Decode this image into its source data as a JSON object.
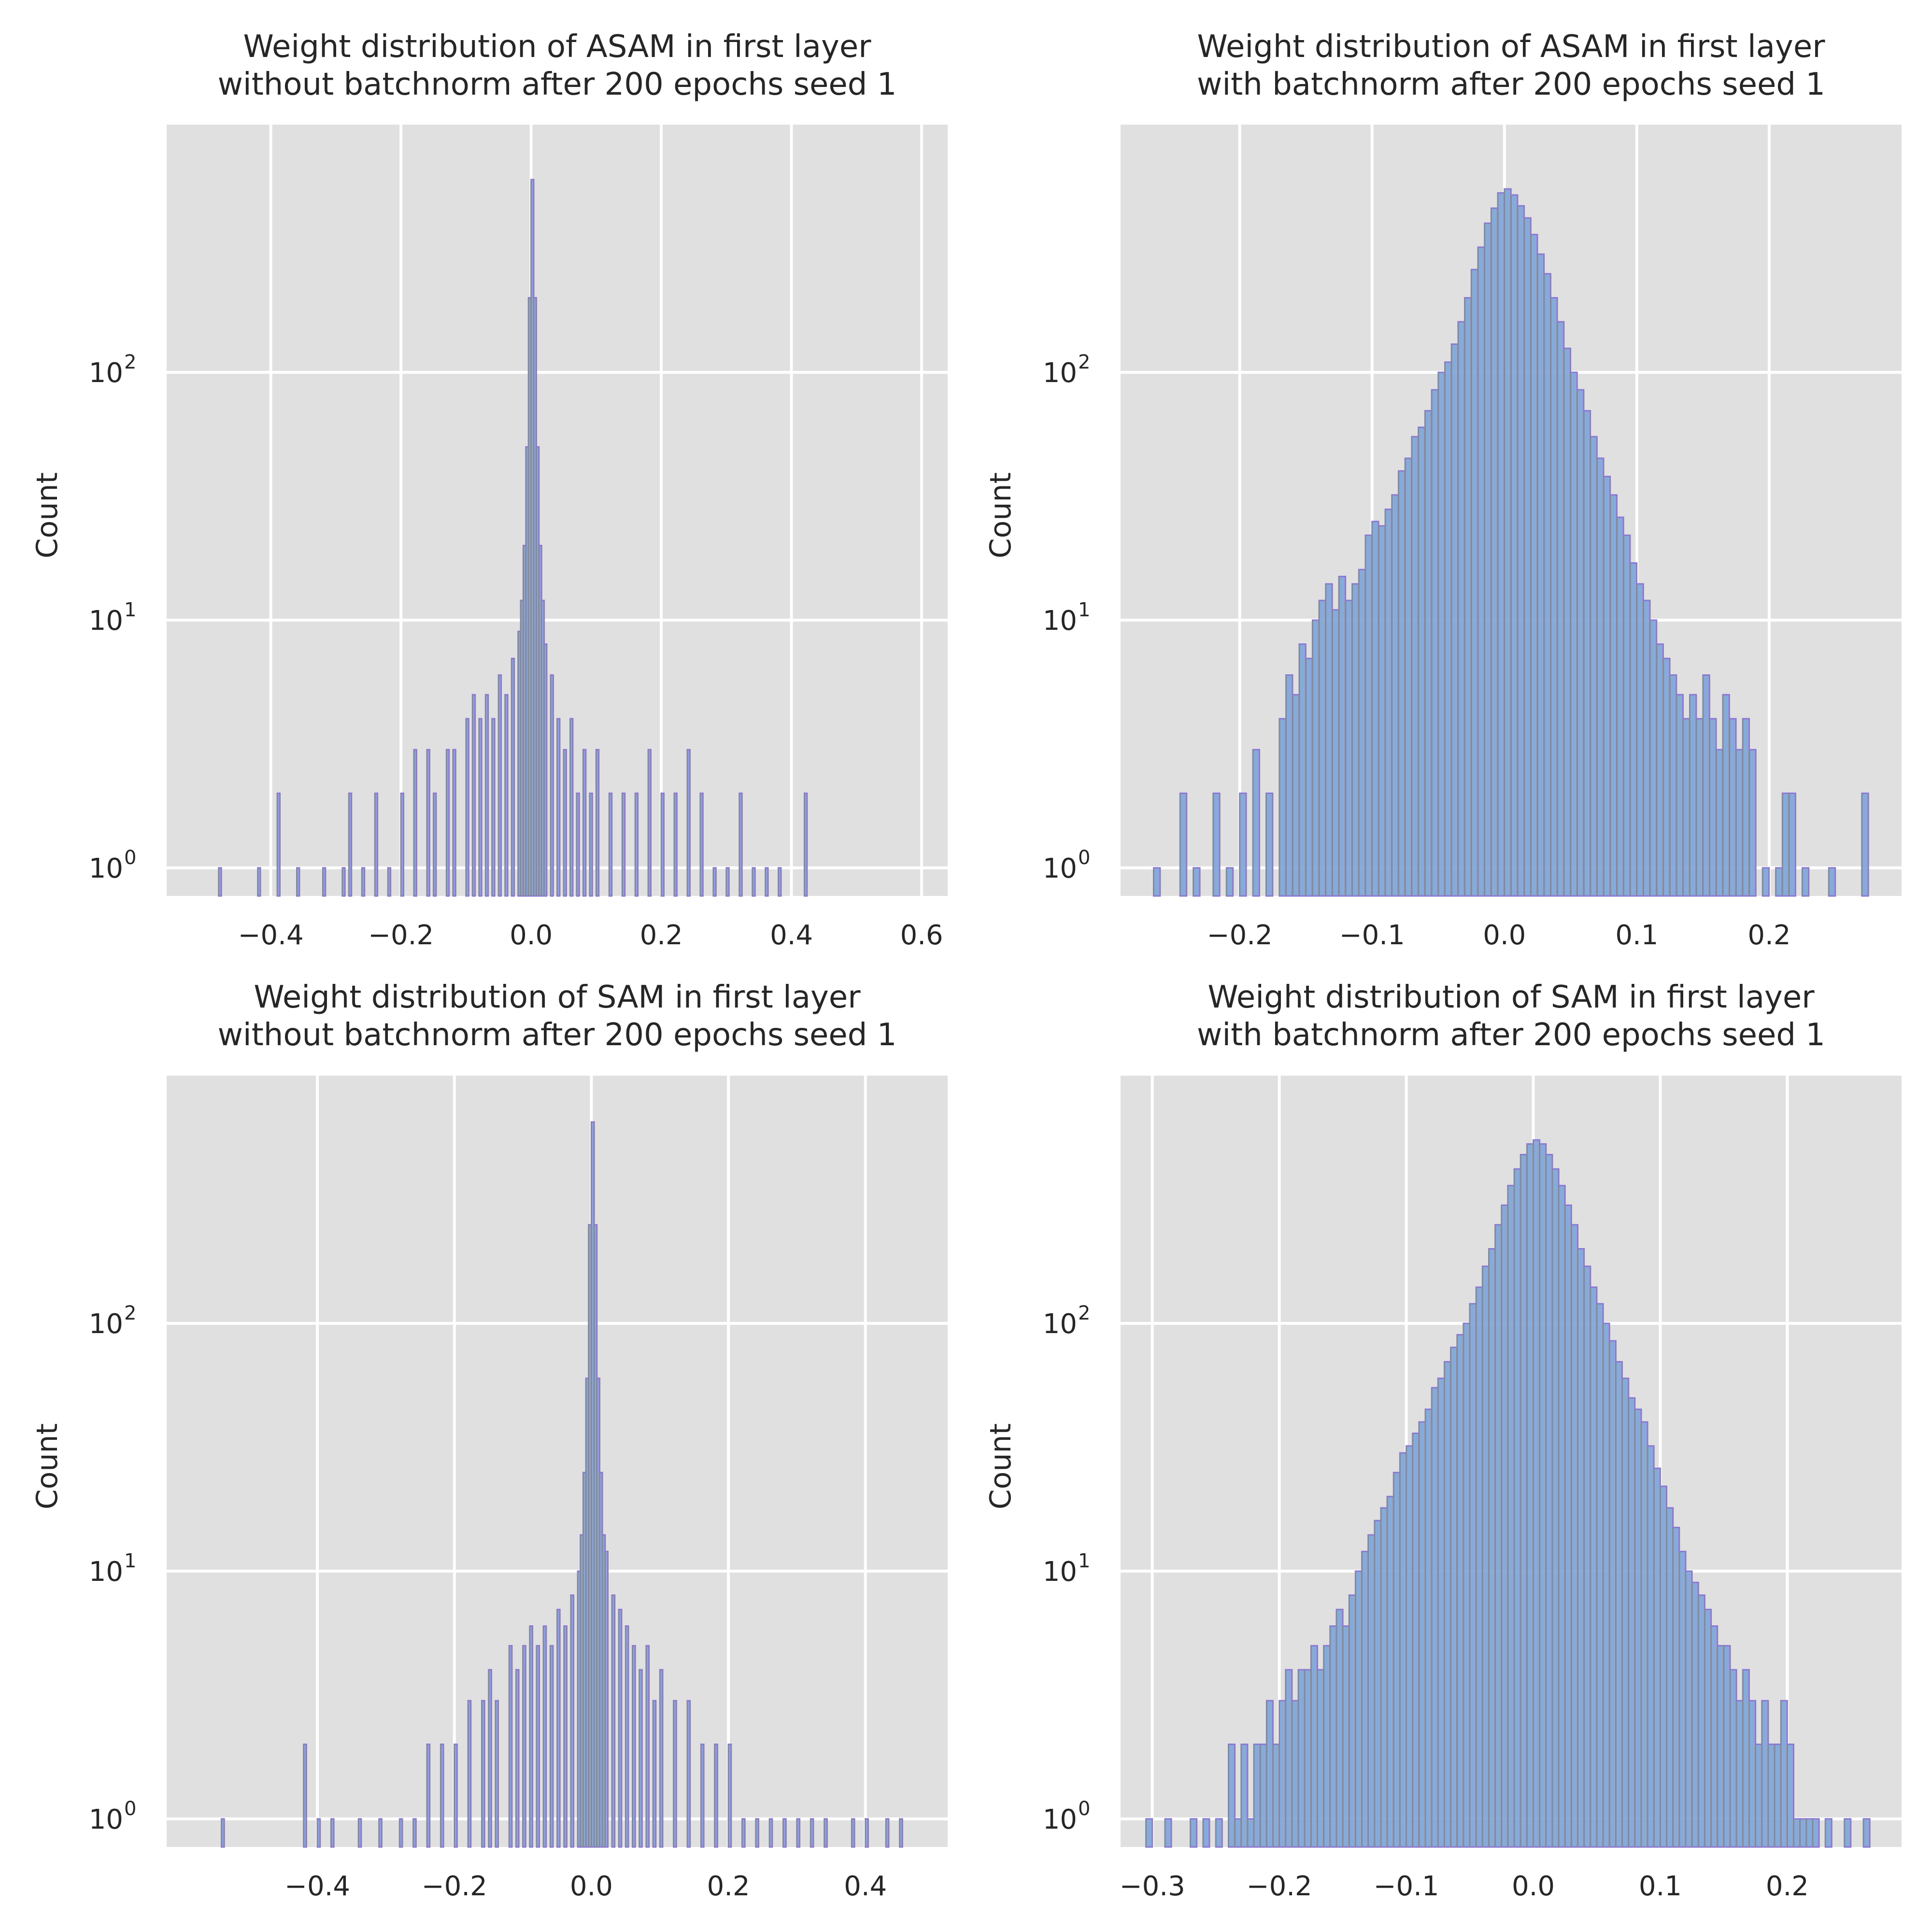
{
  "chart_data": [
    {
      "type": "bar",
      "title_line1": "Weight distribution of ASAM in first layer",
      "title_line2": "without batchnorm after 200 epochs seed 1",
      "ylabel": "Count",
      "xlabel": "",
      "yscale": "log",
      "xlim": [
        -0.56,
        0.64
      ],
      "ylim": [
        0.77,
        1000
      ],
      "xticks": [
        -0.4,
        -0.2,
        0.0,
        0.2,
        0.4,
        0.6
      ],
      "xtick_labels": [
        "−0.4",
        "−0.2",
        "0.0",
        "0.2",
        "0.4",
        "0.6"
      ],
      "yticks": [
        1,
        10,
        100
      ],
      "ytick_labels": [
        {
          "base": "10",
          "exp": "0"
        },
        {
          "base": "10",
          "exp": "1"
        },
        {
          "base": "10",
          "exp": "2"
        }
      ],
      "grid": true,
      "bin_width": 0.004,
      "bins": [
        [
          -0.48,
          1
        ],
        [
          -0.42,
          1
        ],
        [
          -0.39,
          2
        ],
        [
          -0.36,
          1
        ],
        [
          -0.32,
          1
        ],
        [
          -0.29,
          1
        ],
        [
          -0.28,
          2
        ],
        [
          -0.26,
          1
        ],
        [
          -0.24,
          2
        ],
        [
          -0.22,
          1
        ],
        [
          -0.2,
          2
        ],
        [
          -0.18,
          3
        ],
        [
          -0.16,
          3
        ],
        [
          -0.15,
          2
        ],
        [
          -0.13,
          3
        ],
        [
          -0.12,
          3
        ],
        [
          -0.1,
          4
        ],
        [
          -0.09,
          5
        ],
        [
          -0.08,
          4
        ],
        [
          -0.07,
          5
        ],
        [
          -0.06,
          4
        ],
        [
          -0.05,
          6
        ],
        [
          -0.04,
          5
        ],
        [
          -0.03,
          7
        ],
        [
          -0.02,
          9
        ],
        [
          -0.016,
          12
        ],
        [
          -0.012,
          20
        ],
        [
          -0.008,
          50
        ],
        [
          -0.004,
          200
        ],
        [
          0.0,
          600
        ],
        [
          0.004,
          200
        ],
        [
          0.008,
          50
        ],
        [
          0.012,
          20
        ],
        [
          0.016,
          12
        ],
        [
          0.02,
          8
        ],
        [
          0.03,
          6
        ],
        [
          0.04,
          4
        ],
        [
          0.05,
          3
        ],
        [
          0.06,
          4
        ],
        [
          0.07,
          2
        ],
        [
          0.08,
          3
        ],
        [
          0.09,
          2
        ],
        [
          0.1,
          3
        ],
        [
          0.12,
          2
        ],
        [
          0.14,
          2
        ],
        [
          0.16,
          2
        ],
        [
          0.18,
          3
        ],
        [
          0.2,
          2
        ],
        [
          0.22,
          2
        ],
        [
          0.24,
          3
        ],
        [
          0.26,
          2
        ],
        [
          0.28,
          1
        ],
        [
          0.3,
          1
        ],
        [
          0.32,
          2
        ],
        [
          0.34,
          1
        ],
        [
          0.36,
          1
        ],
        [
          0.38,
          1
        ],
        [
          0.42,
          2
        ]
      ]
    },
    {
      "type": "bar",
      "title_line1": "Weight distribution of ASAM in first layer",
      "title_line2": "with batchnorm after 200 epochs seed 1",
      "ylabel": "Count",
      "xlabel": "",
      "yscale": "log",
      "xlim": [
        -0.29,
        0.3
      ],
      "ylim": [
        0.77,
        1000
      ],
      "xticks": [
        -0.2,
        -0.1,
        0.0,
        0.1,
        0.2
      ],
      "xtick_labels": [
        "−0.2",
        "−0.1",
        "0.0",
        "0.1",
        "0.2"
      ],
      "yticks": [
        1,
        10,
        100
      ],
      "ytick_labels": [
        {
          "base": "10",
          "exp": "0"
        },
        {
          "base": "10",
          "exp": "1"
        },
        {
          "base": "10",
          "exp": "2"
        }
      ],
      "grid": true,
      "bin_width": 0.0049,
      "bins": [
        [
          -0.265,
          1
        ],
        [
          -0.245,
          2
        ],
        [
          -0.235,
          1
        ],
        [
          -0.22,
          2
        ],
        [
          -0.21,
          1
        ],
        [
          -0.2,
          2
        ],
        [
          -0.19,
          3
        ],
        [
          -0.18,
          2
        ],
        [
          -0.17,
          4
        ],
        [
          -0.165,
          6
        ],
        [
          -0.16,
          5
        ],
        [
          -0.155,
          8
        ],
        [
          -0.15,
          7
        ],
        [
          -0.145,
          10
        ],
        [
          -0.14,
          12
        ],
        [
          -0.135,
          14
        ],
        [
          -0.13,
          11
        ],
        [
          -0.125,
          15
        ],
        [
          -0.12,
          12
        ],
        [
          -0.115,
          14
        ],
        [
          -0.11,
          16
        ],
        [
          -0.105,
          22
        ],
        [
          -0.1,
          25
        ],
        [
          -0.095,
          24
        ],
        [
          -0.09,
          28
        ],
        [
          -0.085,
          32
        ],
        [
          -0.08,
          40
        ],
        [
          -0.075,
          45
        ],
        [
          -0.07,
          55
        ],
        [
          -0.065,
          60
        ],
        [
          -0.06,
          70
        ],
        [
          -0.055,
          85
        ],
        [
          -0.05,
          100
        ],
        [
          -0.045,
          110
        ],
        [
          -0.04,
          130
        ],
        [
          -0.035,
          160
        ],
        [
          -0.03,
          200
        ],
        [
          -0.025,
          260
        ],
        [
          -0.02,
          320
        ],
        [
          -0.015,
          400
        ],
        [
          -0.01,
          460
        ],
        [
          -0.005,
          530
        ],
        [
          0.0,
          550
        ],
        [
          0.005,
          520
        ],
        [
          0.01,
          470
        ],
        [
          0.015,
          420
        ],
        [
          0.02,
          360
        ],
        [
          0.025,
          300
        ],
        [
          0.03,
          250
        ],
        [
          0.035,
          200
        ],
        [
          0.04,
          160
        ],
        [
          0.045,
          125
        ],
        [
          0.05,
          100
        ],
        [
          0.055,
          85
        ],
        [
          0.06,
          70
        ],
        [
          0.065,
          55
        ],
        [
          0.07,
          45
        ],
        [
          0.075,
          38
        ],
        [
          0.08,
          32
        ],
        [
          0.085,
          26
        ],
        [
          0.09,
          22
        ],
        [
          0.095,
          17
        ],
        [
          0.1,
          14
        ],
        [
          0.105,
          12
        ],
        [
          0.11,
          10
        ],
        [
          0.115,
          8
        ],
        [
          0.12,
          7
        ],
        [
          0.125,
          6
        ],
        [
          0.13,
          5
        ],
        [
          0.135,
          4
        ],
        [
          0.14,
          5
        ],
        [
          0.145,
          4
        ],
        [
          0.15,
          6
        ],
        [
          0.155,
          4
        ],
        [
          0.16,
          3
        ],
        [
          0.165,
          5
        ],
        [
          0.17,
          4
        ],
        [
          0.175,
          3
        ],
        [
          0.18,
          4
        ],
        [
          0.185,
          3
        ],
        [
          0.195,
          1
        ],
        [
          0.205,
          1
        ],
        [
          0.21,
          2
        ],
        [
          0.215,
          2
        ],
        [
          0.225,
          1
        ],
        [
          0.245,
          1
        ],
        [
          0.27,
          2
        ]
      ]
    },
    {
      "type": "bar",
      "title_line1": "Weight distribution of SAM in first layer",
      "title_line2": "without batchnorm after 200 epochs seed 1",
      "ylabel": "Count",
      "xlabel": "",
      "yscale": "log",
      "xlim": [
        -0.62,
        0.52
      ],
      "ylim": [
        0.77,
        1000
      ],
      "xticks": [
        -0.4,
        -0.2,
        0.0,
        0.2,
        0.4
      ],
      "xtick_labels": [
        "−0.4",
        "−0.2",
        "0.0",
        "0.2",
        "0.4"
      ],
      "yticks": [
        1,
        10,
        100
      ],
      "ytick_labels": [
        {
          "base": "10",
          "exp": "0"
        },
        {
          "base": "10",
          "exp": "1"
        },
        {
          "base": "10",
          "exp": "2"
        }
      ],
      "grid": true,
      "bin_width": 0.004,
      "bins": [
        [
          -0.54,
          1
        ],
        [
          -0.42,
          2
        ],
        [
          -0.4,
          1
        ],
        [
          -0.38,
          1
        ],
        [
          -0.34,
          1
        ],
        [
          -0.31,
          1
        ],
        [
          -0.28,
          1
        ],
        [
          -0.26,
          1
        ],
        [
          -0.24,
          2
        ],
        [
          -0.22,
          2
        ],
        [
          -0.2,
          2
        ],
        [
          -0.18,
          3
        ],
        [
          -0.16,
          3
        ],
        [
          -0.15,
          4
        ],
        [
          -0.14,
          3
        ],
        [
          -0.12,
          5
        ],
        [
          -0.11,
          4
        ],
        [
          -0.1,
          5
        ],
        [
          -0.09,
          6
        ],
        [
          -0.08,
          5
        ],
        [
          -0.07,
          6
        ],
        [
          -0.06,
          5
        ],
        [
          -0.05,
          7
        ],
        [
          -0.04,
          6
        ],
        [
          -0.03,
          8
        ],
        [
          -0.02,
          10
        ],
        [
          -0.016,
          14
        ],
        [
          -0.012,
          25
        ],
        [
          -0.008,
          60
        ],
        [
          -0.004,
          250
        ],
        [
          0.0,
          650
        ],
        [
          0.004,
          250
        ],
        [
          0.008,
          60
        ],
        [
          0.012,
          25
        ],
        [
          0.016,
          14
        ],
        [
          0.02,
          12
        ],
        [
          0.03,
          8
        ],
        [
          0.04,
          7
        ],
        [
          0.05,
          6
        ],
        [
          0.06,
          5
        ],
        [
          0.07,
          4
        ],
        [
          0.08,
          5
        ],
        [
          0.09,
          3
        ],
        [
          0.1,
          4
        ],
        [
          0.12,
          3
        ],
        [
          0.14,
          3
        ],
        [
          0.16,
          2
        ],
        [
          0.18,
          2
        ],
        [
          0.2,
          2
        ],
        [
          0.22,
          1
        ],
        [
          0.24,
          1
        ],
        [
          0.26,
          1
        ],
        [
          0.28,
          1
        ],
        [
          0.3,
          1
        ],
        [
          0.32,
          1
        ],
        [
          0.34,
          1
        ],
        [
          0.38,
          1
        ],
        [
          0.4,
          1
        ],
        [
          0.43,
          1
        ],
        [
          0.45,
          1
        ]
      ]
    },
    {
      "type": "bar",
      "title_line1": "Weight distribution of SAM in first layer",
      "title_line2": "with batchnorm after 200 epochs seed 1",
      "ylabel": "Count",
      "xlabel": "",
      "yscale": "log",
      "xlim": [
        -0.325,
        0.29
      ],
      "ylim": [
        0.77,
        1000
      ],
      "xticks": [
        -0.3,
        -0.2,
        -0.1,
        0.0,
        0.1,
        0.2
      ],
      "xtick_labels": [
        "−0.3",
        "−0.2",
        "−0.1",
        "0.0",
        "0.1",
        "0.2"
      ],
      "yticks": [
        1,
        10,
        100
      ],
      "ytick_labels": [
        {
          "base": "10",
          "exp": "0"
        },
        {
          "base": "10",
          "exp": "1"
        },
        {
          "base": "10",
          "exp": "2"
        }
      ],
      "grid": true,
      "bin_width": 0.005,
      "bins": [
        [
          -0.305,
          1
        ],
        [
          -0.29,
          1
        ],
        [
          -0.27,
          1
        ],
        [
          -0.26,
          1
        ],
        [
          -0.25,
          1
        ],
        [
          -0.24,
          2
        ],
        [
          -0.235,
          1
        ],
        [
          -0.23,
          2
        ],
        [
          -0.225,
          1
        ],
        [
          -0.22,
          2
        ],
        [
          -0.215,
          2
        ],
        [
          -0.21,
          3
        ],
        [
          -0.205,
          2
        ],
        [
          -0.2,
          3
        ],
        [
          -0.195,
          4
        ],
        [
          -0.19,
          3
        ],
        [
          -0.185,
          4
        ],
        [
          -0.18,
          4
        ],
        [
          -0.175,
          5
        ],
        [
          -0.17,
          4
        ],
        [
          -0.165,
          5
        ],
        [
          -0.16,
          6
        ],
        [
          -0.155,
          7
        ],
        [
          -0.15,
          6
        ],
        [
          -0.145,
          8
        ],
        [
          -0.14,
          10
        ],
        [
          -0.135,
          12
        ],
        [
          -0.13,
          14
        ],
        [
          -0.125,
          16
        ],
        [
          -0.12,
          18
        ],
        [
          -0.115,
          20
        ],
        [
          -0.11,
          25
        ],
        [
          -0.105,
          30
        ],
        [
          -0.1,
          32
        ],
        [
          -0.095,
          36
        ],
        [
          -0.09,
          40
        ],
        [
          -0.085,
          45
        ],
        [
          -0.08,
          55
        ],
        [
          -0.075,
          60
        ],
        [
          -0.07,
          70
        ],
        [
          -0.065,
          80
        ],
        [
          -0.06,
          90
        ],
        [
          -0.055,
          100
        ],
        [
          -0.05,
          120
        ],
        [
          -0.045,
          140
        ],
        [
          -0.04,
          170
        ],
        [
          -0.035,
          200
        ],
        [
          -0.03,
          250
        ],
        [
          -0.025,
          300
        ],
        [
          -0.02,
          360
        ],
        [
          -0.015,
          420
        ],
        [
          -0.01,
          480
        ],
        [
          -0.005,
          530
        ],
        [
          0.0,
          550
        ],
        [
          0.005,
          530
        ],
        [
          0.01,
          480
        ],
        [
          0.015,
          420
        ],
        [
          0.02,
          360
        ],
        [
          0.025,
          300
        ],
        [
          0.03,
          250
        ],
        [
          0.035,
          200
        ],
        [
          0.04,
          170
        ],
        [
          0.045,
          140
        ],
        [
          0.05,
          120
        ],
        [
          0.055,
          100
        ],
        [
          0.06,
          85
        ],
        [
          0.065,
          70
        ],
        [
          0.07,
          60
        ],
        [
          0.075,
          50
        ],
        [
          0.08,
          45
        ],
        [
          0.085,
          40
        ],
        [
          0.09,
          32
        ],
        [
          0.095,
          26
        ],
        [
          0.1,
          22
        ],
        [
          0.105,
          18
        ],
        [
          0.11,
          15
        ],
        [
          0.115,
          12
        ],
        [
          0.12,
          10
        ],
        [
          0.125,
          9
        ],
        [
          0.13,
          8
        ],
        [
          0.135,
          7
        ],
        [
          0.14,
          6
        ],
        [
          0.145,
          5
        ],
        [
          0.15,
          5
        ],
        [
          0.155,
          4
        ],
        [
          0.16,
          3
        ],
        [
          0.165,
          4
        ],
        [
          0.17,
          3
        ],
        [
          0.175,
          2
        ],
        [
          0.18,
          3
        ],
        [
          0.185,
          2
        ],
        [
          0.19,
          2
        ],
        [
          0.195,
          3
        ],
        [
          0.2,
          2
        ],
        [
          0.205,
          1
        ],
        [
          0.21,
          1
        ],
        [
          0.215,
          1
        ],
        [
          0.22,
          1
        ],
        [
          0.23,
          1
        ],
        [
          0.245,
          1
        ],
        [
          0.26,
          1
        ]
      ]
    }
  ]
}
